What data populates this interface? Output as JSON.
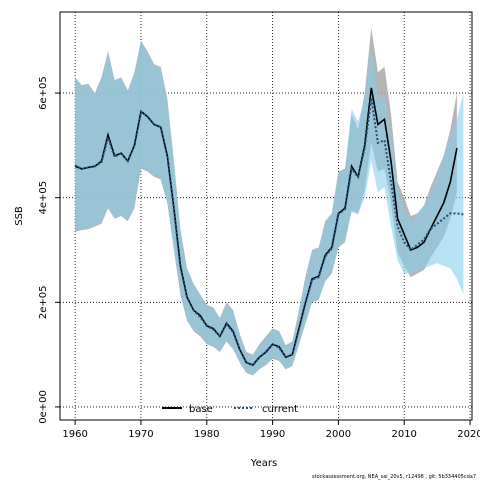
{
  "chart_data": {
    "type": "line",
    "title": "",
    "xlabel": "Years",
    "ylabel": "SSB",
    "xlim": [
      1957.7,
      2020.3
    ],
    "ylim": [
      -25000,
      755000
    ],
    "x_ticks": [
      1960,
      1970,
      1980,
      1990,
      2000,
      2010,
      2020
    ],
    "y_ticks": [
      0,
      200000,
      400000,
      600000
    ],
    "y_tick_labels": [
      "0e+00",
      "2e+05",
      "4e+05",
      "6e+05"
    ],
    "grid": true,
    "legend_position": "bottom-center",
    "footnote": "stockassessment.org, NEA_sai_20v5, r12498 , git: 5b334405cda7",
    "colors": {
      "base_band": "#a8a8a8",
      "current_band": "#87ceeb",
      "base_line": "#000000",
      "current_line": "#1f4e79"
    },
    "series": [
      {
        "name": "base",
        "style": "solid",
        "x": [
          1960,
          1961,
          1962,
          1963,
          1964,
          1965,
          1966,
          1967,
          1968,
          1969,
          1970,
          1971,
          1972,
          1973,
          1974,
          1975,
          1976,
          1977,
          1978,
          1979,
          1980,
          1981,
          1982,
          1983,
          1984,
          1985,
          1986,
          1987,
          1988,
          1989,
          1990,
          1991,
          1992,
          1993,
          1994,
          1995,
          1996,
          1997,
          1998,
          1999,
          2000,
          2001,
          2002,
          2003,
          2004,
          2005,
          2006,
          2007,
          2008,
          2009,
          2010,
          2011,
          2012,
          2013,
          2014,
          2015,
          2016,
          2017,
          2018
        ],
        "y": [
          460000,
          455000,
          458000,
          460000,
          470000,
          520000,
          480000,
          485000,
          470000,
          500000,
          565000,
          555000,
          540000,
          535000,
          480000,
          380000,
          270000,
          210000,
          185000,
          175000,
          155000,
          150000,
          135000,
          160000,
          145000,
          110000,
          85000,
          80000,
          95000,
          105000,
          120000,
          115000,
          95000,
          100000,
          150000,
          200000,
          245000,
          250000,
          290000,
          305000,
          370000,
          380000,
          460000,
          440000,
          500000,
          610000,
          540000,
          550000,
          470000,
          360000,
          330000,
          300000,
          305000,
          315000,
          340000,
          365000,
          390000,
          430000,
          495000
        ],
        "lower": [
          335000,
          338000,
          340000,
          345000,
          350000,
          380000,
          360000,
          365000,
          355000,
          380000,
          455000,
          450000,
          440000,
          435000,
          390000,
          300000,
          215000,
          165000,
          145000,
          135000,
          120000,
          115000,
          105000,
          125000,
          110000,
          85000,
          65000,
          60000,
          72000,
          80000,
          92000,
          88000,
          72000,
          78000,
          118000,
          160000,
          200000,
          205000,
          240000,
          255000,
          305000,
          315000,
          375000,
          370000,
          415000,
          505000,
          450000,
          455000,
          390000,
          295000,
          270000,
          248000,
          255000,
          262000,
          285000,
          305000,
          325000,
          360000,
          410000
        ],
        "upper": [
          630000,
          615000,
          618000,
          600000,
          630000,
          680000,
          625000,
          630000,
          605000,
          640000,
          700000,
          680000,
          655000,
          650000,
          590000,
          470000,
          340000,
          265000,
          235000,
          215000,
          195000,
          190000,
          170000,
          200000,
          185000,
          140000,
          105000,
          100000,
          120000,
          135000,
          150000,
          145000,
          118000,
          125000,
          185000,
          250000,
          300000,
          305000,
          355000,
          370000,
          450000,
          455000,
          560000,
          530000,
          600000,
          725000,
          640000,
          650000,
          560000,
          430000,
          400000,
          365000,
          370000,
          385000,
          420000,
          450000,
          480000,
          530000,
          600000
        ]
      },
      {
        "name": "current",
        "style": "dotted",
        "x": [
          1960,
          1961,
          1962,
          1963,
          1964,
          1965,
          1966,
          1967,
          1968,
          1969,
          1970,
          1971,
          1972,
          1973,
          1974,
          1975,
          1976,
          1977,
          1978,
          1979,
          1980,
          1981,
          1982,
          1983,
          1984,
          1985,
          1986,
          1987,
          1988,
          1989,
          1990,
          1991,
          1992,
          1993,
          1994,
          1995,
          1996,
          1997,
          1998,
          1999,
          2000,
          2001,
          2002,
          2003,
          2004,
          2005,
          2006,
          2007,
          2008,
          2009,
          2010,
          2011,
          2012,
          2013,
          2014,
          2015,
          2016,
          2017,
          2018,
          2019
        ],
        "y": [
          462000,
          455000,
          458000,
          460000,
          468000,
          515000,
          478000,
          485000,
          470000,
          500000,
          565000,
          555000,
          540000,
          535000,
          480000,
          378000,
          268000,
          210000,
          185000,
          172000,
          155000,
          148000,
          135000,
          158000,
          143000,
          110000,
          85000,
          80000,
          95000,
          105000,
          120000,
          113000,
          95000,
          100000,
          148000,
          198000,
          243000,
          248000,
          288000,
          303000,
          368000,
          378000,
          455000,
          440000,
          495000,
          590000,
          505000,
          510000,
          430000,
          345000,
          315000,
          300000,
          310000,
          320000,
          340000,
          350000,
          360000,
          370000,
          370000,
          368000
        ],
        "lower": [
          338000,
          340000,
          342000,
          346000,
          352000,
          382000,
          362000,
          366000,
          356000,
          382000,
          457000,
          452000,
          442000,
          437000,
          392000,
          302000,
          217000,
          167000,
          147000,
          137000,
          122000,
          117000,
          107000,
          127000,
          112000,
          87000,
          67000,
          62000,
          74000,
          82000,
          94000,
          90000,
          74000,
          80000,
          120000,
          162000,
          202000,
          207000,
          242000,
          257000,
          307000,
          317000,
          372000,
          368000,
          400000,
          470000,
          410000,
          420000,
          345000,
          280000,
          255000,
          255000,
          260000,
          265000,
          270000,
          275000,
          270000,
          265000,
          245000,
          215000
        ],
        "upper": [
          628000,
          613000,
          616000,
          598000,
          628000,
          678000,
          623000,
          628000,
          603000,
          638000,
          698000,
          678000,
          653000,
          648000,
          588000,
          468000,
          338000,
          263000,
          233000,
          213000,
          193000,
          188000,
          168000,
          198000,
          183000,
          138000,
          103000,
          98000,
          118000,
          133000,
          148000,
          143000,
          116000,
          123000,
          183000,
          248000,
          298000,
          303000,
          353000,
          368000,
          448000,
          453000,
          570000,
          545000,
          590000,
          690000,
          590000,
          595000,
          520000,
          420000,
          380000,
          355000,
          370000,
          385000,
          410000,
          440000,
          480000,
          520000,
          550000,
          600000
        ]
      }
    ]
  }
}
